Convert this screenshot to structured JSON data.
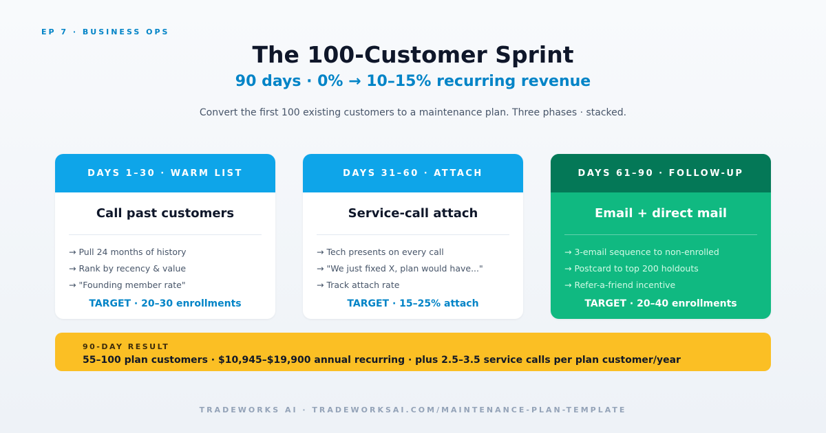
{
  "eyebrow": "EP 7 · BUSINESS OPS",
  "title": "The 100-Customer Sprint",
  "subtitle": "90 days · 0% → 10–15% recurring revenue",
  "description": "Convert the first 100 existing customers to a maintenance plan. Three phases · stacked.",
  "colors": {
    "accent": "#0284c7",
    "phase_header": "#0ea5e9",
    "followup_header": "#047857",
    "followup_card": "#10b981",
    "result_bg": "#fbbf24"
  },
  "phases": [
    {
      "header": "DAYS 1–30 · WARM LIST",
      "heading": "Call past customers",
      "items": [
        "→ Pull 24 months of history",
        "→ Rank by recency & value",
        "→ \"Founding member rate\""
      ],
      "target": "TARGET · 20–30 enrollments"
    },
    {
      "header": "DAYS 31–60 · ATTACH",
      "heading": "Service-call attach",
      "items": [
        "→ Tech presents on every call",
        "→ \"We just fixed X, plan would have...\"",
        "→ Track attach rate"
      ],
      "target": "TARGET · 15–25% attach"
    },
    {
      "header": "DAYS 61–90 · FOLLOW-UP",
      "heading": "Email + direct mail",
      "items": [
        "→ 3-email sequence to non-enrolled",
        "→ Postcard to top 200 holdouts",
        "→ Refer-a-friend incentive"
      ],
      "target": "TARGET · 20–40 enrollments"
    }
  ],
  "result": {
    "label": "90-DAY RESULT",
    "text": "55–100 plan customers · $10,945–$19,900 annual recurring · plus 2.5–3.5 service calls per plan customer/year"
  },
  "footer": "TRADEWORKS AI · TRADEWORKSAI.COM/MAINTENANCE-PLAN-TEMPLATE"
}
